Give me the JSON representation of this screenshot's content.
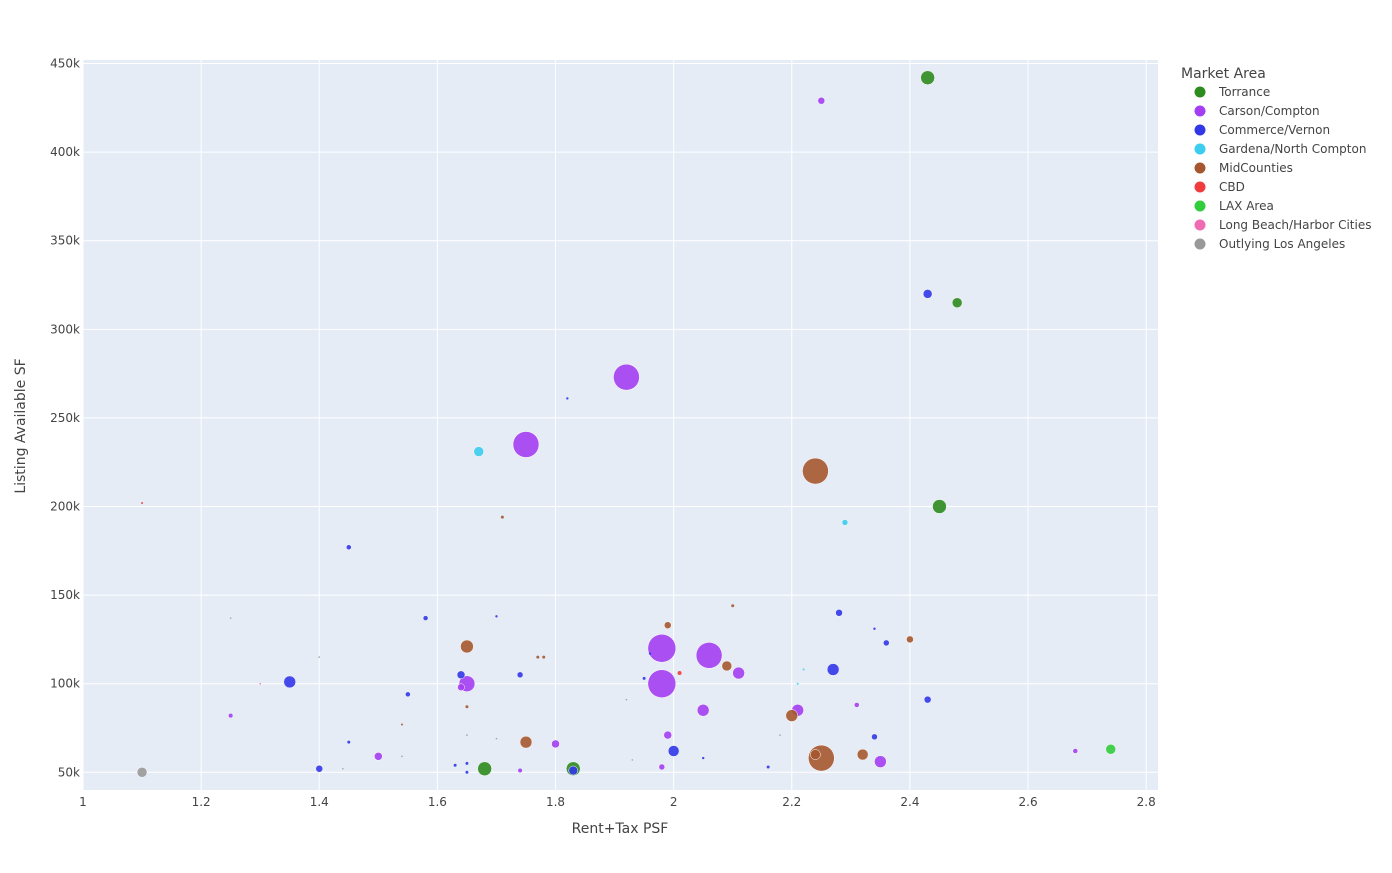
{
  "chart_data": {
    "type": "scatter",
    "xlabel": "Rent+Tax PSF",
    "ylabel": "Listing Available SF",
    "xlim": [
      1.0,
      2.82
    ],
    "ylim": [
      40000,
      452000
    ],
    "x_ticks": [
      1,
      1.2,
      1.4,
      1.6,
      1.8,
      2,
      2.2,
      2.4,
      2.6,
      2.8
    ],
    "x_tick_labels": [
      "1",
      "1.2",
      "1.4",
      "1.6",
      "1.8",
      "2",
      "2.2",
      "2.4",
      "2.6",
      "2.8"
    ],
    "y_ticks": [
      50000,
      100000,
      150000,
      200000,
      250000,
      300000,
      350000,
      400000,
      450000
    ],
    "y_tick_labels": [
      "50k",
      "100k",
      "150k",
      "200k",
      "250k",
      "300k",
      "350k",
      "400k",
      "450k"
    ],
    "grid": true,
    "legend_title": "Market Area",
    "legend_position": "top-right",
    "series": [
      {
        "name": "Torrance",
        "color": "#2e8b1f",
        "points": [
          {
            "x": 2.43,
            "y": 442000,
            "s": 7
          },
          {
            "x": 2.48,
            "y": 315000,
            "s": 5
          },
          {
            "x": 2.45,
            "y": 200000,
            "s": 7
          },
          {
            "x": 1.68,
            "y": 52000,
            "s": 7
          },
          {
            "x": 1.83,
            "y": 52000,
            "s": 7
          }
        ]
      },
      {
        "name": "Carson/Compton",
        "color": "#a33ef2",
        "points": [
          {
            "x": 2.25,
            "y": 429000,
            "s": 3.5
          },
          {
            "x": 1.92,
            "y": 273000,
            "s": 13
          },
          {
            "x": 1.75,
            "y": 235000,
            "s": 13
          },
          {
            "x": 1.98,
            "y": 120000,
            "s": 14
          },
          {
            "x": 2.06,
            "y": 116000,
            "s": 13
          },
          {
            "x": 1.98,
            "y": 100000,
            "s": 14
          },
          {
            "x": 1.65,
            "y": 100000,
            "s": 8
          },
          {
            "x": 2.11,
            "y": 106000,
            "s": 6
          },
          {
            "x": 2.05,
            "y": 85000,
            "s": 6
          },
          {
            "x": 2.21,
            "y": 85000,
            "s": 6
          },
          {
            "x": 1.99,
            "y": 71000,
            "s": 4
          },
          {
            "x": 1.8,
            "y": 66000,
            "s": 4
          },
          {
            "x": 1.5,
            "y": 59000,
            "s": 4
          },
          {
            "x": 2.35,
            "y": 56000,
            "s": 6
          },
          {
            "x": 1.64,
            "y": 98000,
            "s": 3.5
          },
          {
            "x": 2.31,
            "y": 88000,
            "s": 2.5
          },
          {
            "x": 1.25,
            "y": 82000,
            "s": 2
          },
          {
            "x": 2.68,
            "y": 62000,
            "s": 2.5
          },
          {
            "x": 1.98,
            "y": 53000,
            "s": 3
          },
          {
            "x": 1.74,
            "y": 51000,
            "s": 2
          }
        ]
      },
      {
        "name": "Commerce/Vernon",
        "color": "#3237e8",
        "points": [
          {
            "x": 2.43,
            "y": 320000,
            "s": 4.5
          },
          {
            "x": 1.45,
            "y": 177000,
            "s": 2.5
          },
          {
            "x": 2.28,
            "y": 140000,
            "s": 3.5
          },
          {
            "x": 1.58,
            "y": 137000,
            "s": 2.5
          },
          {
            "x": 2.36,
            "y": 123000,
            "s": 3
          },
          {
            "x": 2.27,
            "y": 108000,
            "s": 6
          },
          {
            "x": 1.35,
            "y": 101000,
            "s": 6
          },
          {
            "x": 1.64,
            "y": 105000,
            "s": 4
          },
          {
            "x": 1.74,
            "y": 105000,
            "s": 3
          },
          {
            "x": 1.55,
            "y": 94000,
            "s": 2.5
          },
          {
            "x": 2.43,
            "y": 91000,
            "s": 3.5
          },
          {
            "x": 2.34,
            "y": 70000,
            "s": 3
          },
          {
            "x": 2.0,
            "y": 62000,
            "s": 5.5
          },
          {
            "x": 1.4,
            "y": 52000,
            "s": 3.5
          },
          {
            "x": 1.83,
            "y": 51000,
            "s": 4.5
          },
          {
            "x": 1.82,
            "y": 261000,
            "s": 1.2
          },
          {
            "x": 1.7,
            "y": 138000,
            "s": 1.2
          },
          {
            "x": 1.96,
            "y": 117000,
            "s": 1.2
          },
          {
            "x": 1.95,
            "y": 103000,
            "s": 1.5
          },
          {
            "x": 2.34,
            "y": 131000,
            "s": 1.2
          },
          {
            "x": 1.45,
            "y": 67000,
            "s": 1.5
          },
          {
            "x": 1.63,
            "y": 54000,
            "s": 1.5
          },
          {
            "x": 1.65,
            "y": 55000,
            "s": 1.5
          },
          {
            "x": 1.65,
            "y": 50000,
            "s": 1.5
          },
          {
            "x": 2.05,
            "y": 58000,
            "s": 1.2
          },
          {
            "x": 2.16,
            "y": 53000,
            "s": 1.5
          }
        ]
      },
      {
        "name": "Gardena/North Compton",
        "color": "#3ccdf0",
        "points": [
          {
            "x": 1.67,
            "y": 231000,
            "s": 5
          },
          {
            "x": 2.29,
            "y": 191000,
            "s": 3
          },
          {
            "x": 2.22,
            "y": 108000,
            "s": 1
          },
          {
            "x": 2.21,
            "y": 100000,
            "s": 1
          }
        ]
      },
      {
        "name": "MidCounties",
        "color": "#a5582f",
        "points": [
          {
            "x": 2.24,
            "y": 220000,
            "s": 13
          },
          {
            "x": 2.25,
            "y": 58000,
            "s": 13
          },
          {
            "x": 1.65,
            "y": 121000,
            "s": 6.5
          },
          {
            "x": 1.99,
            "y": 133000,
            "s": 3.5
          },
          {
            "x": 2.4,
            "y": 125000,
            "s": 3.5
          },
          {
            "x": 2.09,
            "y": 110000,
            "s": 5
          },
          {
            "x": 2.2,
            "y": 82000,
            "s": 6
          },
          {
            "x": 1.75,
            "y": 67000,
            "s": 6
          },
          {
            "x": 2.32,
            "y": 60000,
            "s": 5.5
          },
          {
            "x": 2.24,
            "y": 60000,
            "s": 5
          },
          {
            "x": 1.71,
            "y": 194000,
            "s": 1.5
          },
          {
            "x": 2.1,
            "y": 144000,
            "s": 1.5
          },
          {
            "x": 1.77,
            "y": 115000,
            "s": 1.5
          },
          {
            "x": 1.78,
            "y": 115000,
            "s": 1.5
          },
          {
            "x": 1.65,
            "y": 87000,
            "s": 1.5
          },
          {
            "x": 1.54,
            "y": 77000,
            "s": 1
          }
        ]
      },
      {
        "name": "CBD",
        "color": "#ef3c3c",
        "points": [
          {
            "x": 1.1,
            "y": 202000,
            "s": 1
          },
          {
            "x": 2.01,
            "y": 106000,
            "s": 2
          }
        ]
      },
      {
        "name": "LAX Area",
        "color": "#32cc3c",
        "points": [
          {
            "x": 2.74,
            "y": 63000,
            "s": 5
          }
        ]
      },
      {
        "name": "Long Beach/Harbor Cities",
        "color": "#f06ab4",
        "points": [
          {
            "x": 1.3,
            "y": 100000,
            "s": 0.8
          }
        ]
      },
      {
        "name": "Outlying Los Angeles",
        "color": "#999999",
        "points": [
          {
            "x": 1.1,
            "y": 50000,
            "s": 5
          },
          {
            "x": 1.25,
            "y": 137000,
            "s": 0.8
          },
          {
            "x": 1.4,
            "y": 115000,
            "s": 0.8
          },
          {
            "x": 1.65,
            "y": 71000,
            "s": 0.8
          },
          {
            "x": 1.7,
            "y": 69000,
            "s": 0.8
          },
          {
            "x": 1.92,
            "y": 91000,
            "s": 0.8
          },
          {
            "x": 1.93,
            "y": 57000,
            "s": 0.8
          },
          {
            "x": 2.18,
            "y": 71000,
            "s": 0.8
          },
          {
            "x": 1.44,
            "y": 52000,
            "s": 0.8
          },
          {
            "x": 1.54,
            "y": 59000,
            "s": 0.8
          }
        ]
      }
    ]
  }
}
